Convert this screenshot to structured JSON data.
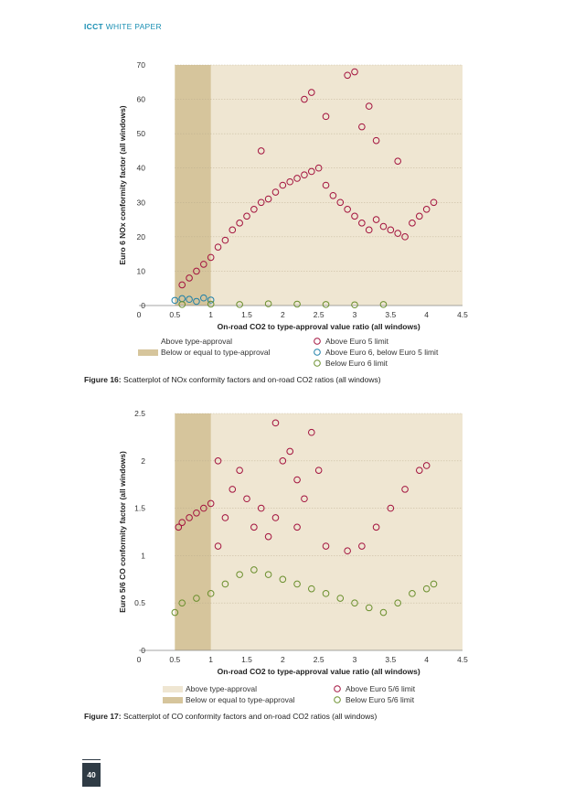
{
  "header": {
    "brand": "ICCT",
    "subtitle": "WHITE PAPER"
  },
  "colors": {
    "above_ta_bg": "#efe6d2",
    "below_ta_bg": "#d6c59c",
    "red": "#a3123e",
    "blue": "#1d7fa8",
    "green": "#6a8f2d"
  },
  "figure16": {
    "caption_label": "Figure 16:",
    "caption_text": "Scatterplot of NOx conformity factors and on-road CO2 ratios (all windows)",
    "legend": {
      "above_ta": "Above type-approval",
      "below_ta": "Below or equal to type-approval",
      "above_e5": "Above Euro 5 limit",
      "e6_e5": "Above Euro 6, below Euro 5 limit",
      "below_e6": "Below Euro 6 limit"
    },
    "chart_data": {
      "type": "scatter",
      "xlabel": "On-road CO2 to type-approval value ratio (all windows)",
      "ylabel": "Euro 6 NOx conformity factor (all windows)",
      "xlim": [
        0,
        4.5
      ],
      "ylim": [
        0,
        70
      ],
      "xticks": [
        "0",
        "0.5",
        "1",
        "1.5",
        "2",
        "2.5",
        "3",
        "3.5",
        "4",
        "4.5"
      ],
      "yticks": [
        "0",
        "10",
        "20",
        "30",
        "40",
        "50",
        "60",
        "70"
      ],
      "type_approval_boundary_x": 1.0,
      "series": [
        {
          "name": "Above Euro 5 limit",
          "color": "#a3123e",
          "x": [
            0.6,
            0.7,
            0.8,
            0.9,
            1.0,
            1.1,
            1.2,
            1.3,
            1.4,
            1.5,
            1.6,
            1.7,
            1.8,
            1.9,
            2.0,
            2.1,
            2.2,
            2.3,
            2.4,
            2.5,
            2.6,
            2.7,
            2.8,
            2.9,
            3.0,
            3.1,
            3.2,
            3.3,
            3.4,
            3.5,
            3.6,
            3.7,
            3.8,
            3.9,
            4.0,
            4.1,
            2.3,
            2.6,
            2.9,
            3.1,
            3.3,
            1.7,
            2.4,
            3.2,
            3.6,
            3.0
          ],
          "y": [
            6,
            8,
            10,
            12,
            14,
            17,
            19,
            22,
            24,
            26,
            28,
            30,
            31,
            33,
            35,
            36,
            37,
            38,
            39,
            40,
            35,
            32,
            30,
            28,
            26,
            24,
            22,
            25,
            23,
            22,
            21,
            20,
            24,
            26,
            28,
            30,
            60,
            55,
            67,
            52,
            48,
            45,
            62,
            58,
            42,
            68
          ]
        },
        {
          "name": "Above Euro 6, below Euro 5 limit",
          "color": "#1d7fa8",
          "x": [
            0.5,
            0.6,
            0.7,
            0.8,
            0.9,
            1.0
          ],
          "y": [
            1.5,
            2.0,
            1.8,
            1.2,
            2.2,
            1.6
          ]
        },
        {
          "name": "Below Euro 6 limit",
          "color": "#6a8f2d",
          "x": [
            0.6,
            1.0,
            1.4,
            1.8,
            2.2,
            2.6,
            3.0,
            3.4
          ],
          "y": [
            0.3,
            0.4,
            0.3,
            0.5,
            0.4,
            0.3,
            0.2,
            0.3
          ]
        }
      ]
    }
  },
  "figure17": {
    "caption_label": "Figure 17:",
    "caption_text": "Scatterplot of CO conformity factors and on-road CO2 ratios (all windows)",
    "legend": {
      "above_ta": "Above type-approval",
      "below_ta": "Below or equal to type-approval",
      "above_e56": "Above Euro 5/6 limit",
      "below_e56": "Below Euro 5/6 limit"
    },
    "chart_data": {
      "type": "scatter",
      "xlabel": "On-road CO2 to type-approval value ratio (all windows)",
      "ylabel": "Euro 5/6 CO conformity factor (all windows)",
      "xlim": [
        0,
        4.5
      ],
      "ylim": [
        0,
        2.5
      ],
      "xticks": [
        "0",
        "0.5",
        "1",
        "1.5",
        "2",
        "2.5",
        "3",
        "3.5",
        "4",
        "4.5"
      ],
      "yticks": [
        "0",
        "0.5",
        "1",
        "1.5",
        "2",
        "2.5"
      ],
      "type_approval_boundary_x": 1.0,
      "series": [
        {
          "name": "Above Euro 5/6 limit",
          "color": "#a3123e",
          "x": [
            0.55,
            0.6,
            0.7,
            0.8,
            0.9,
            1.0,
            1.1,
            1.2,
            1.3,
            1.4,
            1.5,
            1.6,
            1.7,
            1.8,
            1.9,
            2.0,
            2.1,
            2.2,
            2.3,
            2.4,
            2.6,
            2.9,
            3.1,
            3.3,
            3.5,
            3.7,
            3.9,
            4.0,
            1.1,
            1.9,
            2.2,
            2.5
          ],
          "y": [
            1.3,
            1.35,
            1.4,
            1.45,
            1.5,
            1.55,
            2.0,
            1.4,
            1.7,
            1.9,
            1.6,
            1.3,
            1.5,
            1.2,
            2.4,
            2.0,
            2.1,
            1.8,
            1.6,
            2.3,
            1.1,
            1.05,
            1.1,
            1.3,
            1.5,
            1.7,
            1.9,
            1.95,
            1.1,
            1.4,
            1.3,
            1.9
          ]
        },
        {
          "name": "Below Euro 5/6 limit",
          "color": "#6a8f2d",
          "x": [
            0.5,
            0.6,
            0.8,
            1.0,
            1.2,
            1.4,
            1.6,
            1.8,
            2.0,
            2.2,
            2.4,
            2.6,
            2.8,
            3.0,
            3.2,
            3.4,
            3.6,
            3.8,
            4.0,
            4.1
          ],
          "y": [
            0.4,
            0.5,
            0.55,
            0.6,
            0.7,
            0.8,
            0.85,
            0.8,
            0.75,
            0.7,
            0.65,
            0.6,
            0.55,
            0.5,
            0.45,
            0.4,
            0.5,
            0.6,
            0.65,
            0.7
          ]
        }
      ]
    }
  },
  "page_number": "40"
}
